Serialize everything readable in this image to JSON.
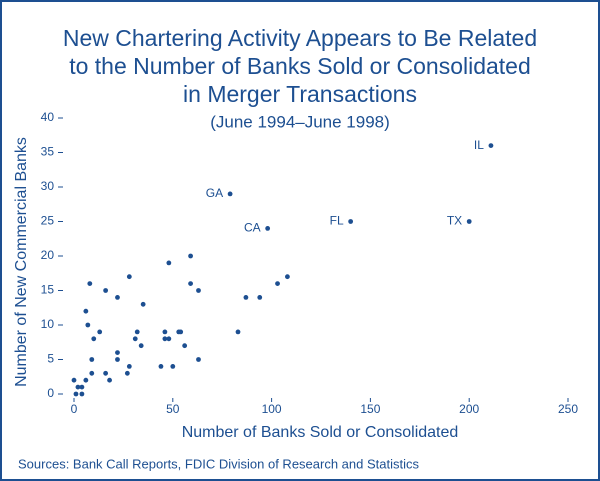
{
  "chart_data": {
    "type": "scatter",
    "title_lines": [
      "New Chartering Activity Appears to Be Related",
      "to the Number of Banks Sold or Consolidated",
      "in Merger Transactions"
    ],
    "subtitle": "(June 1994–June 1998)",
    "x_label": "Number of Banks Sold or Consolidated",
    "y_label": "Number of New Commercial  Banks",
    "source": "Sources: Bank Call Reports, FDIC Division of Research and Statistics",
    "color": "#1d4f91",
    "xlim": [
      0,
      250
    ],
    "xticks": [
      0,
      50,
      100,
      150,
      200,
      250
    ],
    "ylim": [
      0,
      40
    ],
    "yticks": [
      0,
      5,
      10,
      15,
      20,
      25,
      30,
      35,
      40
    ],
    "x": [
      211,
      79,
      98,
      140,
      200,
      59,
      48,
      28,
      108,
      8,
      59,
      103,
      16,
      63,
      22,
      87,
      94,
      35,
      6,
      7,
      13,
      32,
      46,
      53,
      54,
      83,
      10,
      31,
      46,
      48,
      34,
      56,
      22,
      9,
      22,
      63,
      28,
      44,
      50,
      9,
      16,
      27,
      18,
      0,
      6,
      2,
      4,
      1,
      4
    ],
    "values": [
      36,
      29,
      24,
      25,
      25,
      20,
      19,
      17,
      17,
      16,
      16,
      16,
      15,
      15,
      14,
      14,
      14,
      13,
      12,
      10,
      9,
      9,
      9,
      9,
      9,
      9,
      8,
      8,
      8,
      8,
      7,
      7,
      6,
      5,
      5,
      5,
      4,
      4,
      4,
      3,
      3,
      3,
      2,
      2,
      2,
      1,
      1,
      0,
      0
    ],
    "point_labels": [
      "IL",
      "GA",
      "CA",
      "FL",
      "TX",
      null,
      null,
      null,
      null,
      null,
      null,
      null,
      null,
      null,
      null,
      null,
      null,
      null,
      null,
      null,
      null,
      null,
      null,
      null,
      null,
      null,
      null,
      null,
      null,
      null,
      null,
      null,
      null,
      null,
      null,
      null,
      null,
      null,
      null,
      null,
      null,
      null,
      null,
      null,
      null,
      null,
      null,
      null,
      null
    ]
  }
}
